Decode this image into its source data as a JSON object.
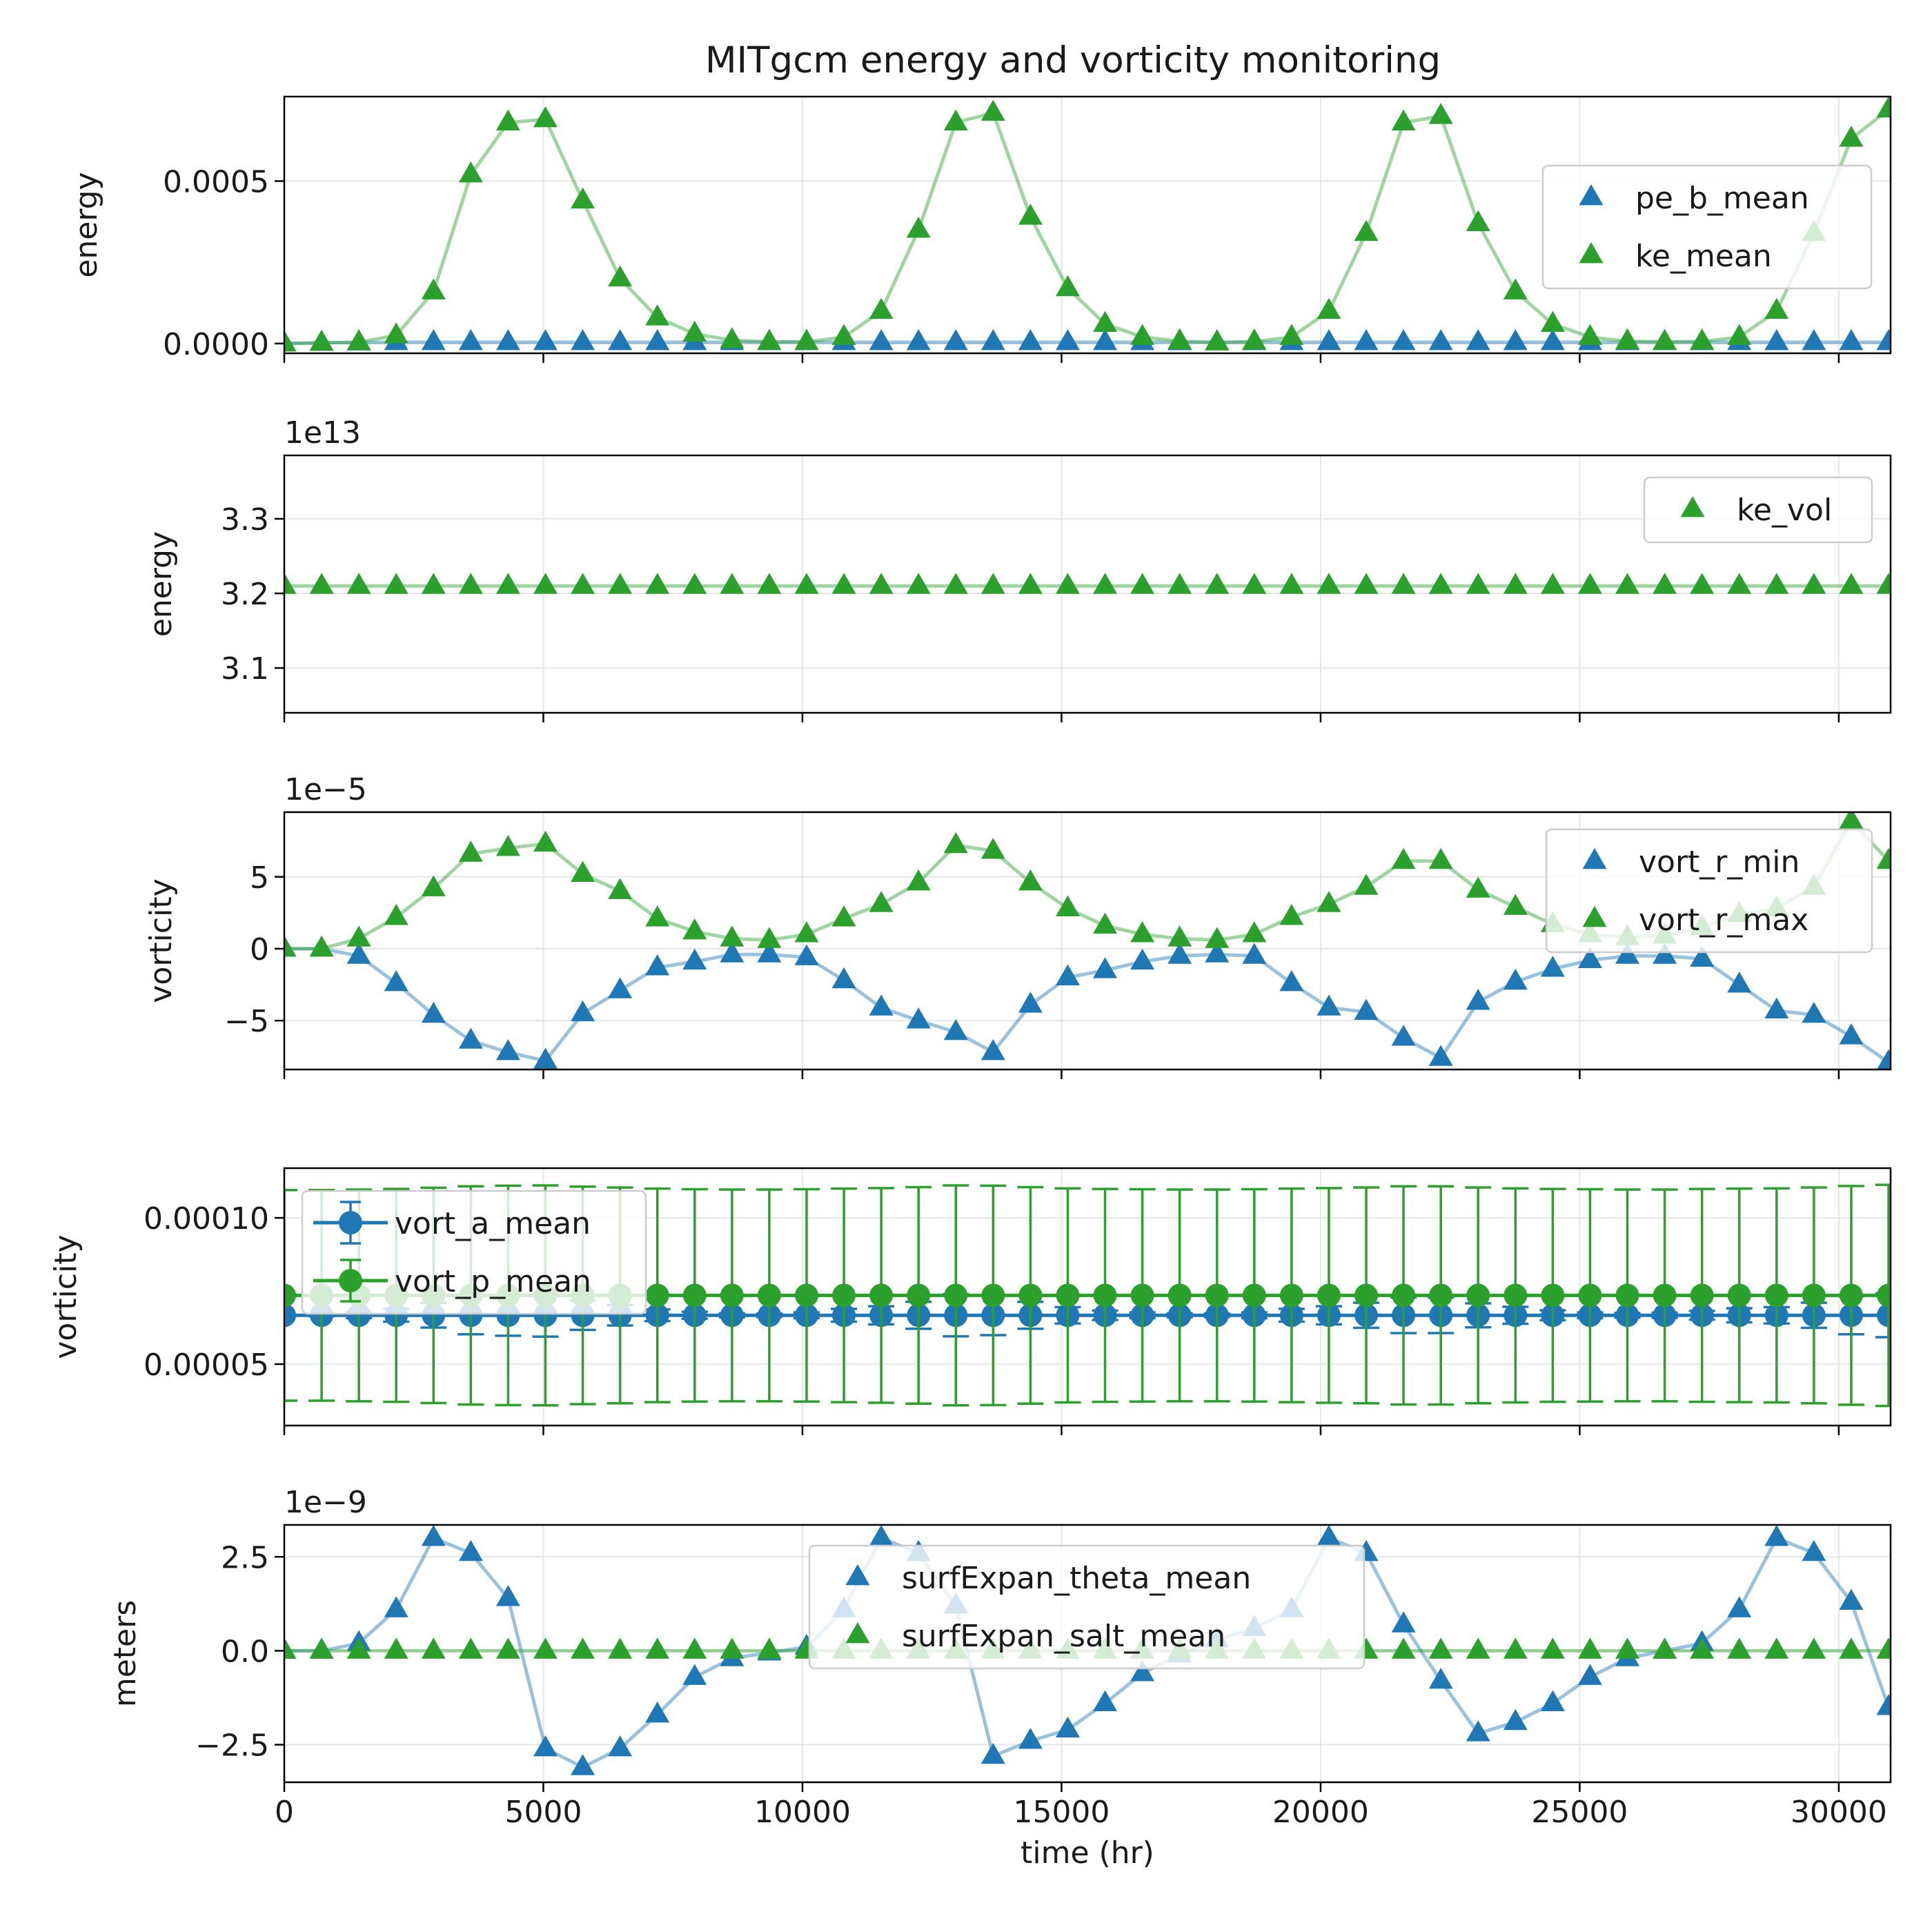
{
  "title": "MITgcm energy and vorticity monitoring",
  "colors": {
    "blue": "#1f77b4",
    "green": "#2ca02c"
  },
  "chart_data": [
    {
      "type": "line",
      "name": "energy-mean",
      "ylabel": "energy",
      "offset": "",
      "xlim": [
        0,
        31000
      ],
      "ylim": [
        -3e-05,
        0.00076
      ],
      "yticks": [
        0,
        0.0005
      ],
      "ytick_labels": [
        "0.0000",
        "0.0005"
      ],
      "legend": "right",
      "x": [
        0,
        720,
        1440,
        2160,
        2880,
        3600,
        4320,
        5040,
        5760,
        6480,
        7200,
        7920,
        8640,
        9360,
        10080,
        10800,
        11520,
        12240,
        12960,
        13680,
        14400,
        15120,
        15840,
        16560,
        17280,
        18000,
        18720,
        19440,
        20160,
        20880,
        21600,
        22320,
        23040,
        23760,
        24480,
        25200,
        25920,
        26640,
        27360,
        28080,
        28800,
        29520,
        30240,
        30960
      ],
      "series": [
        {
          "name": "pe_b_mean",
          "color": "#1f77b4",
          "marker": "triangle",
          "values": [
            0,
            2e-06,
            3e-06,
            4e-06,
            4e-06,
            4e-06,
            4e-06,
            4e-06,
            4e-06,
            4e-06,
            4e-06,
            4e-06,
            4e-06,
            4e-06,
            4e-06,
            4e-06,
            4e-06,
            4e-06,
            4e-06,
            4e-06,
            4e-06,
            4e-06,
            4e-06,
            4e-06,
            4e-06,
            4e-06,
            4e-06,
            4e-06,
            4e-06,
            4e-06,
            4e-06,
            4e-06,
            4e-06,
            4e-06,
            4e-06,
            4e-06,
            4e-06,
            4e-06,
            4e-06,
            4e-06,
            4e-06,
            4e-06,
            4e-06,
            4e-06
          ]
        },
        {
          "name": "ke_mean",
          "color": "#2ca02c",
          "marker": "triangle",
          "values": [
            0,
            2e-06,
            4e-06,
            2.5e-05,
            0.00016,
            0.00052,
            0.00068,
            0.00069,
            0.00044,
            0.0002,
            8e-05,
            3e-05,
            1e-05,
            5e-06,
            5e-06,
            2e-05,
            0.0001,
            0.00035,
            0.00068,
            0.00071,
            0.00039,
            0.00017,
            6e-05,
            2e-05,
            7e-06,
            3e-06,
            6e-06,
            2e-05,
            0.0001,
            0.00034,
            0.00068,
            0.0007,
            0.00037,
            0.00016,
            6e-05,
            2e-05,
            7e-06,
            5e-06,
            6e-06,
            2e-05,
            0.0001,
            0.00034,
            0.00063,
            0.00072
          ]
        }
      ]
    },
    {
      "type": "line",
      "name": "energy-volume",
      "ylabel": "energy",
      "offset": "1e13",
      "xlim": [
        0,
        31000
      ],
      "ylim": [
        3.04,
        3.385
      ],
      "yticks": [
        3.1,
        3.2,
        3.3
      ],
      "ytick_labels": [
        "3.1",
        "3.2",
        "3.3"
      ],
      "legend": "top-right",
      "x": [
        0,
        720,
        1440,
        2160,
        2880,
        3600,
        4320,
        5040,
        5760,
        6480,
        7200,
        7920,
        8640,
        9360,
        10080,
        10800,
        11520,
        12240,
        12960,
        13680,
        14400,
        15120,
        15840,
        16560,
        17280,
        18000,
        18720,
        19440,
        20160,
        20880,
        21600,
        22320,
        23040,
        23760,
        24480,
        25200,
        25920,
        26640,
        27360,
        28080,
        28800,
        29520,
        30240,
        30960
      ],
      "series": [
        {
          "name": "ke_vol",
          "color": "#2ca02c",
          "marker": "triangle",
          "values": [
            3.21,
            3.21,
            3.21,
            3.21,
            3.21,
            3.21,
            3.21,
            3.21,
            3.21,
            3.21,
            3.21,
            3.21,
            3.21,
            3.21,
            3.21,
            3.21,
            3.21,
            3.21,
            3.21,
            3.21,
            3.21,
            3.21,
            3.21,
            3.21,
            3.21,
            3.21,
            3.21,
            3.21,
            3.21,
            3.21,
            3.21,
            3.21,
            3.21,
            3.21,
            3.21,
            3.21,
            3.21,
            3.21,
            3.21,
            3.21,
            3.21,
            3.21,
            3.21,
            3.21
          ]
        }
      ]
    },
    {
      "type": "line",
      "name": "relative-vorticity",
      "ylabel": "vorticity",
      "offset": "1e−5",
      "xlim": [
        0,
        31000
      ],
      "ylim": [
        -8.4,
        9.5
      ],
      "yticks": [
        -5,
        0,
        5
      ],
      "ytick_labels": [
        "−5",
        "0",
        "5"
      ],
      "legend": "right",
      "x": [
        0,
        720,
        1440,
        2160,
        2880,
        3600,
        4320,
        5040,
        5760,
        6480,
        7200,
        7920,
        8640,
        9360,
        10080,
        10800,
        11520,
        12240,
        12960,
        13680,
        14400,
        15120,
        15840,
        16560,
        17280,
        18000,
        18720,
        19440,
        20160,
        20880,
        21600,
        22320,
        23040,
        23760,
        24480,
        25200,
        25920,
        26640,
        27360,
        28080,
        28800,
        29520,
        30240,
        30960
      ],
      "series": [
        {
          "name": "vort_r_min",
          "color": "#1f77b4",
          "marker": "triangle",
          "values": [
            0,
            0,
            -0.5,
            -2.4,
            -4.6,
            -6.4,
            -7.2,
            -7.8,
            -4.5,
            -2.9,
            -1.3,
            -0.9,
            -0.4,
            -0.4,
            -0.6,
            -2.2,
            -4.1,
            -5.0,
            -5.8,
            -7.2,
            -3.9,
            -2.0,
            -1.5,
            -0.9,
            -0.5,
            -0.4,
            -0.5,
            -2.4,
            -4.1,
            -4.4,
            -6.2,
            -7.6,
            -3.7,
            -2.3,
            -1.4,
            -0.8,
            -0.5,
            -0.5,
            -0.7,
            -2.5,
            -4.3,
            -4.6,
            -6.1,
            -7.9
          ]
        },
        {
          "name": "vort_r_max",
          "color": "#2ca02c",
          "marker": "triangle",
          "values": [
            0,
            0,
            0.7,
            2.2,
            4.2,
            6.6,
            7.0,
            7.3,
            5.2,
            4.0,
            2.1,
            1.2,
            0.7,
            0.6,
            1.0,
            2.1,
            3.1,
            4.6,
            7.2,
            6.8,
            4.6,
            2.8,
            1.6,
            1.0,
            0.7,
            0.6,
            1.0,
            2.2,
            3.1,
            4.3,
            6.1,
            6.1,
            4.1,
            2.9,
            1.7,
            1.0,
            0.8,
            0.9,
            1.5,
            2.4,
            2.8,
            4.3,
            8.9,
            6.1
          ]
        }
      ]
    },
    {
      "type": "line",
      "name": "mean-vorticity",
      "ylabel": "vorticity",
      "offset": "",
      "xlim": [
        0,
        31000
      ],
      "ylim": [
        2.9e-05,
        0.000117
      ],
      "yticks": [
        5e-05,
        0.0001
      ],
      "ytick_labels": [
        "0.00005",
        "0.00010"
      ],
      "legend": "top-left",
      "x": [
        0,
        720,
        1440,
        2160,
        2880,
        3600,
        4320,
        5040,
        5760,
        6480,
        7200,
        7920,
        8640,
        9360,
        10080,
        10800,
        11520,
        12240,
        12960,
        13680,
        14400,
        15120,
        15840,
        16560,
        17280,
        18000,
        18720,
        19440,
        20160,
        20880,
        21600,
        22320,
        23040,
        23760,
        24480,
        25200,
        25920,
        26640,
        27360,
        28080,
        28800,
        29520,
        30240,
        30960
      ],
      "series": [
        {
          "name": "vort_a_mean",
          "color": "#1f77b4",
          "marker": "circle",
          "values": [
            6.67e-05,
            6.67e-05,
            6.67e-05,
            6.67e-05,
            6.67e-05,
            6.67e-05,
            6.67e-05,
            6.67e-05,
            6.67e-05,
            6.67e-05,
            6.67e-05,
            6.67e-05,
            6.67e-05,
            6.67e-05,
            6.67e-05,
            6.67e-05,
            6.67e-05,
            6.67e-05,
            6.67e-05,
            6.67e-05,
            6.67e-05,
            6.67e-05,
            6.67e-05,
            6.67e-05,
            6.67e-05,
            6.67e-05,
            6.67e-05,
            6.67e-05,
            6.67e-05,
            6.67e-05,
            6.67e-05,
            6.67e-05,
            6.67e-05,
            6.67e-05,
            6.67e-05,
            6.67e-05,
            6.67e-05,
            6.67e-05,
            6.67e-05,
            6.67e-05,
            6.67e-05,
            6.67e-05,
            6.67e-05,
            6.67e-05
          ],
          "errors": [
            0,
            3e-07,
            1e-06,
            2.2e-06,
            4.2e-06,
            6.5e-06,
            7e-06,
            7.3e-06,
            5e-06,
            3.5e-06,
            2e-06,
            1.2e-06,
            7e-07,
            6e-07,
            1e-06,
            2.2e-06,
            3.1e-06,
            4.6e-06,
            7.2e-06,
            6.8e-06,
            4.6e-06,
            2.8e-06,
            1.6e-06,
            1e-06,
            7e-07,
            6e-07,
            1e-06,
            2.2e-06,
            3.1e-06,
            4.3e-06,
            6.1e-06,
            6.1e-06,
            4.1e-06,
            2.9e-06,
            1.7e-06,
            1e-06,
            8e-07,
            9e-07,
            1.5e-06,
            2.4e-06,
            2.8e-06,
            4.3e-06,
            6.5e-06,
            7.5e-06
          ]
        },
        {
          "name": "vort_p_mean",
          "color": "#2ca02c",
          "marker": "circle",
          "values": [
            7.35e-05,
            7.35e-05,
            7.35e-05,
            7.35e-05,
            7.35e-05,
            7.35e-05,
            7.35e-05,
            7.35e-05,
            7.35e-05,
            7.35e-05,
            7.35e-05,
            7.35e-05,
            7.35e-05,
            7.35e-05,
            7.35e-05,
            7.35e-05,
            7.35e-05,
            7.35e-05,
            7.35e-05,
            7.35e-05,
            7.35e-05,
            7.35e-05,
            7.35e-05,
            7.35e-05,
            7.35e-05,
            7.35e-05,
            7.35e-05,
            7.35e-05,
            7.35e-05,
            7.35e-05,
            7.35e-05,
            7.35e-05,
            7.35e-05,
            7.35e-05,
            7.35e-05,
            7.35e-05,
            7.35e-05,
            7.35e-05,
            7.35e-05,
            7.35e-05,
            7.35e-05,
            7.35e-05,
            7.35e-05,
            7.35e-05
          ],
          "errors": [
            3.6e-05,
            3.6e-05,
            3.62e-05,
            3.64e-05,
            3.68e-05,
            3.73e-05,
            3.75e-05,
            3.76e-05,
            3.72e-05,
            3.69e-05,
            3.65e-05,
            3.63e-05,
            3.62e-05,
            3.62e-05,
            3.63e-05,
            3.65e-05,
            3.67e-05,
            3.7e-05,
            3.76e-05,
            3.75e-05,
            3.7e-05,
            3.66e-05,
            3.64e-05,
            3.63e-05,
            3.62e-05,
            3.62e-05,
            3.63e-05,
            3.65e-05,
            3.67e-05,
            3.69e-05,
            3.73e-05,
            3.73e-05,
            3.69e-05,
            3.66e-05,
            3.64e-05,
            3.63e-05,
            3.62e-05,
            3.62e-05,
            3.64e-05,
            3.65e-05,
            3.66e-05,
            3.69e-05,
            3.74e-05,
            3.78e-05
          ]
        }
      ]
    },
    {
      "type": "line",
      "name": "surface-expansion",
      "ylabel": "meters",
      "xlabel": "time (hr)",
      "offset": "1e−9",
      "xlim": [
        0,
        31000
      ],
      "ylim": [
        -3.5,
        3.35
      ],
      "yticks": [
        -2.5,
        0,
        2.5
      ],
      "ytick_labels": [
        "−2.5",
        "0.0",
        "2.5"
      ],
      "xticks": [
        0,
        5000,
        10000,
        15000,
        20000,
        25000,
        30000
      ],
      "xtick_labels": [
        "0",
        "5000",
        "10000",
        "15000",
        "20000",
        "25000",
        "30000"
      ],
      "legend": "top-center",
      "x": [
        0,
        720,
        1440,
        2160,
        2880,
        3600,
        4320,
        5040,
        5760,
        6480,
        7200,
        7920,
        8640,
        9360,
        10080,
        10800,
        11520,
        12240,
        12960,
        13680,
        14400,
        15120,
        15840,
        16560,
        17280,
        18000,
        18720,
        19440,
        20160,
        20880,
        21600,
        22320,
        23040,
        23760,
        24480,
        25200,
        25920,
        26640,
        27360,
        28080,
        28800,
        29520,
        30240,
        30960
      ],
      "series": [
        {
          "name": "surfExpan_theta_mean",
          "color": "#1f77b4",
          "marker": "triangle",
          "values": [
            0,
            0,
            0.2,
            1.1,
            3.0,
            2.6,
            1.4,
            -2.6,
            -3.1,
            -2.6,
            -1.7,
            -0.7,
            -0.2,
            -0.05,
            0.1,
            1.1,
            3.0,
            2.6,
            1.2,
            -2.8,
            -2.4,
            -2.1,
            -1.4,
            -0.6,
            -0.1,
            0.3,
            0.6,
            1.1,
            3.0,
            2.6,
            0.7,
            -0.8,
            -2.2,
            -1.9,
            -1.4,
            -0.7,
            -0.2,
            0,
            0.2,
            1.1,
            3.0,
            2.6,
            1.3,
            -1.5
          ]
        },
        {
          "name": "surfExpan_salt_mean",
          "color": "#2ca02c",
          "marker": "triangle",
          "values": [
            0,
            0,
            0,
            0,
            0,
            0,
            0,
            0,
            0,
            0,
            0,
            0,
            0,
            0,
            0,
            0,
            0,
            0,
            0,
            0,
            0,
            0,
            0,
            0,
            0,
            0,
            0,
            0,
            0,
            0,
            0,
            0,
            0,
            0,
            0,
            0,
            0,
            0,
            0,
            0,
            0,
            0,
            0,
            0
          ]
        }
      ]
    }
  ]
}
